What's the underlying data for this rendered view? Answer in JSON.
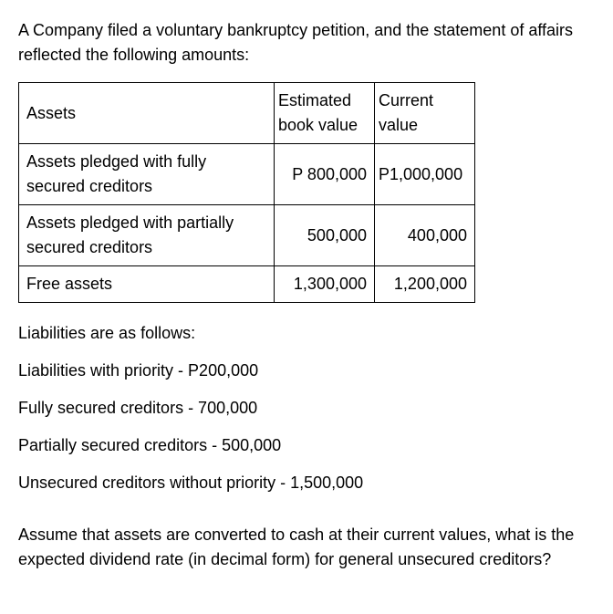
{
  "intro": "A Company filed a voluntary bankruptcy petition, and the statement of affairs reflected the following amounts:",
  "table": {
    "headers": {
      "assets": "Assets",
      "col1_line1": "Estimated",
      "col1_line2": "book value",
      "col2_line1": "Current",
      "col2_line2": "value"
    },
    "rows": {
      "r1": {
        "label": "Assets pledged with fully secured creditors",
        "v1": "P 800,000",
        "v2": "P1,000,000"
      },
      "r2": {
        "label": "Assets pledged with partially secured creditors",
        "v1": "500,000",
        "v2": "400,000"
      },
      "r3": {
        "label": "Free assets",
        "v1": "1,300,000",
        "v2": "1,200,000"
      }
    }
  },
  "liabilities": {
    "heading": "Liabilities are as follows:",
    "l1": "Liabilities with priority - P200,000",
    "l2": "Fully secured creditors -   700,000",
    "l3": "Partially secured creditors - 500,000",
    "l4": "Unsecured creditors without priority - 1,500,000"
  },
  "question": "Assume that assets are converted to cash at their current values, what is the expected dividend rate (in decimal form) for general unsecured creditors?"
}
